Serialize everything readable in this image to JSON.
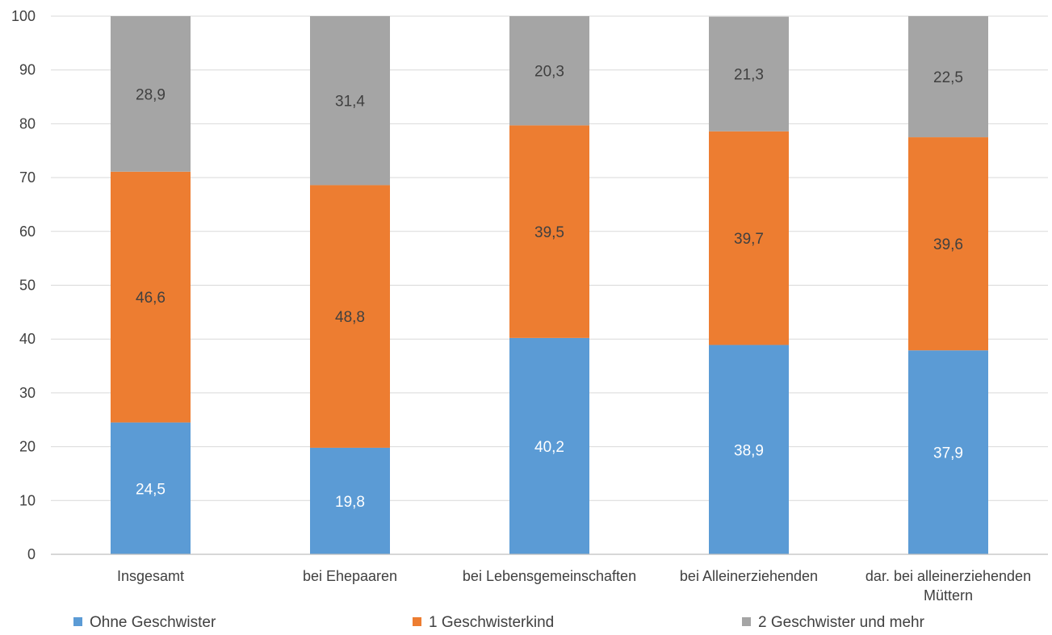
{
  "chart_data": {
    "type": "bar",
    "stacked": true,
    "categories": [
      [
        "Insgesamt"
      ],
      [
        "bei Ehepaaren"
      ],
      [
        "bei Lebensgemeinschaften"
      ],
      [
        "bei Alleinerziehenden"
      ],
      [
        "dar. bei alleinerziehenden",
        "Müttern"
      ]
    ],
    "series": [
      {
        "name": "Ohne Geschwister",
        "color": "#5B9BD5",
        "label_color": "#FFFFFF",
        "values": [
          24.5,
          19.8,
          40.2,
          38.9,
          37.9
        ],
        "value_labels": [
          "24,5",
          "19,8",
          "40,2",
          "38,9",
          "37,9"
        ]
      },
      {
        "name": "1 Geschwisterkind",
        "color": "#ED7D31",
        "label_color": "#404040",
        "values": [
          46.6,
          48.8,
          39.5,
          39.7,
          39.6
        ],
        "value_labels": [
          "46,6",
          "48,8",
          "39,5",
          "39,7",
          "39,6"
        ]
      },
      {
        "name": "2 Geschwister und mehr",
        "color": "#A5A5A5",
        "label_color": "#404040",
        "values": [
          28.9,
          31.4,
          20.3,
          21.3,
          22.5
        ],
        "value_labels": [
          "28,9",
          "31,4",
          "20,3",
          "21,3",
          "22,5"
        ]
      }
    ],
    "ylim": [
      0,
      100
    ],
    "yticks": [
      0,
      10,
      20,
      30,
      40,
      50,
      60,
      70,
      80,
      90,
      100
    ],
    "grid": true,
    "legend_position": "bottom",
    "gridline_color": "#D9D9D9",
    "axis_color": "#BFBFBF"
  }
}
